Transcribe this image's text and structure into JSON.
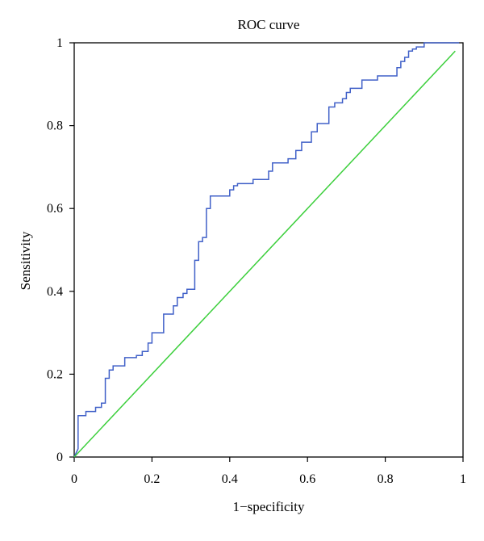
{
  "chart_data": {
    "type": "line",
    "title": "ROC curve",
    "xlabel": "1−specificity",
    "ylabel": "Sensitivity",
    "xlim": [
      0,
      1
    ],
    "ylim": [
      0,
      1
    ],
    "xticks": [
      "0",
      "0.2",
      "0.4",
      "0.6",
      "0.8",
      "1"
    ],
    "yticks": [
      "0",
      "0.2",
      "0.4",
      "0.6",
      "0.8",
      "1"
    ],
    "grid": false,
    "legend": "none",
    "series": [
      {
        "color": "#4060c8",
        "style": "step",
        "points": [
          [
            0.0,
            0.0
          ],
          [
            0.01,
            0.02
          ],
          [
            0.01,
            0.1
          ],
          [
            0.03,
            0.1
          ],
          [
            0.03,
            0.11
          ],
          [
            0.055,
            0.11
          ],
          [
            0.055,
            0.12
          ],
          [
            0.07,
            0.12
          ],
          [
            0.07,
            0.13
          ],
          [
            0.08,
            0.13
          ],
          [
            0.08,
            0.19
          ],
          [
            0.09,
            0.19
          ],
          [
            0.09,
            0.21
          ],
          [
            0.1,
            0.21
          ],
          [
            0.1,
            0.22
          ],
          [
            0.13,
            0.22
          ],
          [
            0.13,
            0.24
          ],
          [
            0.16,
            0.24
          ],
          [
            0.16,
            0.245
          ],
          [
            0.175,
            0.245
          ],
          [
            0.175,
            0.255
          ],
          [
            0.19,
            0.255
          ],
          [
            0.19,
            0.275
          ],
          [
            0.2,
            0.275
          ],
          [
            0.2,
            0.3
          ],
          [
            0.23,
            0.3
          ],
          [
            0.23,
            0.345
          ],
          [
            0.255,
            0.345
          ],
          [
            0.255,
            0.365
          ],
          [
            0.265,
            0.365
          ],
          [
            0.265,
            0.385
          ],
          [
            0.28,
            0.385
          ],
          [
            0.28,
            0.395
          ],
          [
            0.29,
            0.395
          ],
          [
            0.29,
            0.405
          ],
          [
            0.31,
            0.405
          ],
          [
            0.31,
            0.475
          ],
          [
            0.32,
            0.475
          ],
          [
            0.32,
            0.52
          ],
          [
            0.33,
            0.52
          ],
          [
            0.33,
            0.53
          ],
          [
            0.34,
            0.53
          ],
          [
            0.34,
            0.6
          ],
          [
            0.35,
            0.6
          ],
          [
            0.35,
            0.63
          ],
          [
            0.4,
            0.63
          ],
          [
            0.4,
            0.645
          ],
          [
            0.41,
            0.645
          ],
          [
            0.41,
            0.655
          ],
          [
            0.42,
            0.655
          ],
          [
            0.42,
            0.66
          ],
          [
            0.46,
            0.66
          ],
          [
            0.46,
            0.67
          ],
          [
            0.5,
            0.67
          ],
          [
            0.5,
            0.69
          ],
          [
            0.51,
            0.69
          ],
          [
            0.51,
            0.71
          ],
          [
            0.55,
            0.71
          ],
          [
            0.55,
            0.72
          ],
          [
            0.57,
            0.72
          ],
          [
            0.57,
            0.74
          ],
          [
            0.585,
            0.74
          ],
          [
            0.585,
            0.76
          ],
          [
            0.61,
            0.76
          ],
          [
            0.61,
            0.785
          ],
          [
            0.625,
            0.785
          ],
          [
            0.625,
            0.805
          ],
          [
            0.655,
            0.805
          ],
          [
            0.655,
            0.845
          ],
          [
            0.67,
            0.845
          ],
          [
            0.67,
            0.855
          ],
          [
            0.69,
            0.855
          ],
          [
            0.69,
            0.865
          ],
          [
            0.7,
            0.865
          ],
          [
            0.7,
            0.88
          ],
          [
            0.71,
            0.88
          ],
          [
            0.71,
            0.89
          ],
          [
            0.74,
            0.89
          ],
          [
            0.74,
            0.91
          ],
          [
            0.78,
            0.91
          ],
          [
            0.78,
            0.92
          ],
          [
            0.83,
            0.92
          ],
          [
            0.83,
            0.94
          ],
          [
            0.84,
            0.94
          ],
          [
            0.84,
            0.955
          ],
          [
            0.85,
            0.955
          ],
          [
            0.85,
            0.965
          ],
          [
            0.86,
            0.965
          ],
          [
            0.86,
            0.98
          ],
          [
            0.87,
            0.98
          ],
          [
            0.87,
            0.985
          ],
          [
            0.88,
            0.985
          ],
          [
            0.88,
            0.99
          ],
          [
            0.9,
            0.99
          ],
          [
            0.9,
            1.0
          ],
          [
            0.99,
            1.0
          ]
        ]
      },
      {
        "color": "#3ccf3c",
        "style": "line",
        "points": [
          [
            0.0,
            0.0
          ],
          [
            0.98,
            0.98
          ]
        ]
      }
    ]
  }
}
